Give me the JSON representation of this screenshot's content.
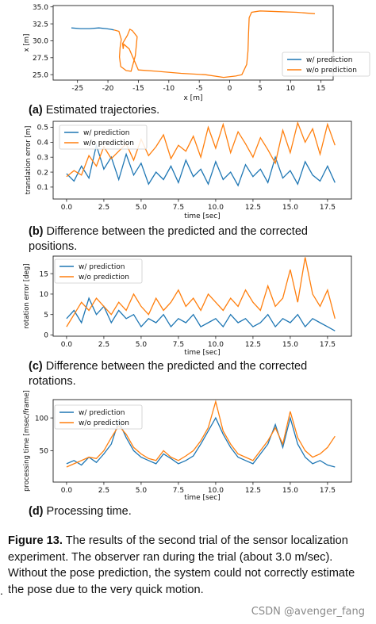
{
  "chart_data": [
    {
      "type": "line",
      "xlabel": "x [m]",
      "ylabel": "x [m]",
      "xlim": [
        -29,
        17
      ],
      "ylim": [
        24.2,
        35.2
      ],
      "xticks": [
        -25,
        -20,
        -15,
        -10,
        -5,
        0,
        5,
        10,
        15
      ],
      "yticks": [
        25.0,
        27.5,
        30.0,
        32.5,
        35.0
      ],
      "tick_labels_y": [
        "25.0",
        "27.5",
        "30.0",
        "32.5",
        "35.0"
      ],
      "legend": "lower-right",
      "series": [
        {
          "name": "w/ prediction",
          "color": "#1f77b4",
          "x": [
            -26,
            -24.5,
            -23,
            -21.5,
            -20.3,
            -19.6,
            -19.0
          ],
          "y": [
            31.9,
            31.8,
            31.8,
            31.9,
            31.8,
            31.7,
            31.6
          ]
        },
        {
          "name": "w/o prediction",
          "color": "#ff7f0e",
          "x": [
            -19.0,
            -18.2,
            -17.8,
            -18.0,
            -18.1,
            -17.9,
            -17.0,
            -16.2,
            -15.5,
            -15.2,
            -16.0,
            -16.4,
            -16.8,
            -17.6,
            -17.5,
            -17.4,
            -16.5,
            -15.0,
            -12.0,
            -8.0,
            -4.0,
            -1.0,
            1.0,
            2.0,
            2.8,
            3.0,
            3.1,
            3.2,
            3.6,
            5.0,
            8.0,
            11.0,
            14.0
          ],
          "y": [
            31.6,
            31.4,
            30.2,
            29.0,
            27.6,
            26.2,
            25.6,
            25.5,
            27.8,
            30.6,
            31.5,
            31.7,
            30.8,
            29.6,
            28.8,
            29.5,
            28.8,
            25.7,
            25.5,
            25.2,
            25.0,
            24.6,
            24.8,
            25.0,
            26.5,
            28.5,
            31.0,
            33.4,
            34.2,
            34.4,
            34.3,
            34.2,
            34.0
          ]
        }
      ]
    },
    {
      "type": "line",
      "xlabel": "time [sec]",
      "ylabel": "translation error [m]",
      "xlim": [
        -0.9,
        19.1
      ],
      "ylim": [
        0.02,
        0.54
      ],
      "xticks": [
        0.0,
        2.5,
        5.0,
        7.5,
        10.0,
        12.5,
        15.0,
        17.5
      ],
      "tick_labels_x": [
        "0.0",
        "2.5",
        "5.0",
        "7.5",
        "10.0",
        "12.5",
        "15.0",
        "17.5"
      ],
      "yticks": [
        0.1,
        0.2,
        0.3,
        0.4,
        0.5
      ],
      "tick_labels_y": [
        "0.1",
        "0.2",
        "0.3",
        "0.4",
        "0.5"
      ],
      "legend": "top-left",
      "series": [
        {
          "name": "w/ prediction",
          "color": "#1f77b4",
          "x": [
            0.0,
            0.5,
            1.0,
            1.5,
            2.0,
            2.5,
            3.0,
            3.5,
            4.0,
            4.5,
            5.0,
            5.5,
            6.0,
            6.5,
            7.0,
            7.5,
            8.0,
            8.5,
            9.0,
            9.5,
            10.0,
            10.5,
            11.0,
            11.5,
            12.0,
            12.5,
            13.0,
            13.5,
            14.0,
            14.5,
            15.0,
            15.5,
            16.0,
            16.5,
            17.0,
            17.5,
            18.0
          ],
          "y": [
            0.19,
            0.14,
            0.24,
            0.16,
            0.38,
            0.22,
            0.3,
            0.15,
            0.32,
            0.18,
            0.26,
            0.12,
            0.2,
            0.15,
            0.24,
            0.13,
            0.28,
            0.17,
            0.22,
            0.12,
            0.27,
            0.15,
            0.2,
            0.11,
            0.25,
            0.17,
            0.22,
            0.13,
            0.3,
            0.16,
            0.21,
            0.12,
            0.27,
            0.18,
            0.14,
            0.24,
            0.13
          ]
        },
        {
          "name": "w/o prediction",
          "color": "#ff7f0e",
          "x": [
            0.0,
            0.5,
            1.0,
            1.5,
            2.0,
            2.5,
            3.0,
            3.5,
            4.0,
            4.5,
            5.0,
            5.5,
            6.0,
            6.5,
            7.0,
            7.5,
            8.0,
            8.5,
            9.0,
            9.5,
            10.0,
            10.5,
            11.0,
            11.5,
            12.0,
            12.5,
            13.0,
            13.5,
            14.0,
            14.5,
            15.0,
            15.5,
            16.0,
            16.5,
            17.0,
            17.5,
            18.0
          ],
          "y": [
            0.17,
            0.21,
            0.18,
            0.31,
            0.24,
            0.37,
            0.29,
            0.34,
            0.39,
            0.28,
            0.42,
            0.31,
            0.37,
            0.45,
            0.29,
            0.38,
            0.34,
            0.44,
            0.3,
            0.5,
            0.36,
            0.52,
            0.33,
            0.47,
            0.39,
            0.3,
            0.43,
            0.35,
            0.26,
            0.48,
            0.33,
            0.53,
            0.4,
            0.49,
            0.32,
            0.52,
            0.38
          ]
        }
      ]
    },
    {
      "type": "line",
      "xlabel": "time [sec]",
      "ylabel": "rotation error [deg]",
      "xlim": [
        -0.9,
        19.1
      ],
      "ylim": [
        -0.3,
        19.3
      ],
      "xticks": [
        0.0,
        2.5,
        5.0,
        7.5,
        10.0,
        12.5,
        15.0,
        17.5
      ],
      "tick_labels_x": [
        "0.0",
        "2.5",
        "5.0",
        "7.5",
        "10.0",
        "12.5",
        "15.0",
        "17.5"
      ],
      "yticks": [
        0,
        5,
        10,
        15
      ],
      "tick_labels_y": [
        "0",
        "5",
        "10",
        "15"
      ],
      "legend": "top-left",
      "series": [
        {
          "name": "w/ prediction",
          "color": "#1f77b4",
          "x": [
            0.0,
            0.5,
            1.0,
            1.5,
            2.0,
            2.5,
            3.0,
            3.5,
            4.0,
            4.5,
            5.0,
            5.5,
            6.0,
            6.5,
            7.0,
            7.5,
            8.0,
            8.5,
            9.0,
            9.5,
            10.0,
            10.5,
            11.0,
            11.5,
            12.0,
            12.5,
            13.0,
            13.5,
            14.0,
            14.5,
            15.0,
            15.5,
            16.0,
            16.5,
            17.0,
            17.5,
            18.0
          ],
          "y": [
            4,
            6,
            3,
            9,
            5,
            7,
            3,
            6,
            4,
            5,
            2,
            4,
            3,
            5,
            2,
            4,
            3,
            5,
            2,
            3,
            4,
            2,
            5,
            3,
            4,
            2,
            3,
            5,
            2,
            4,
            3,
            5,
            2,
            4,
            3,
            2,
            1
          ]
        },
        {
          "name": "w/o prediction",
          "color": "#ff7f0e",
          "x": [
            0.0,
            0.5,
            1.0,
            1.5,
            2.0,
            2.5,
            3.0,
            3.5,
            4.0,
            4.5,
            5.0,
            5.5,
            6.0,
            6.5,
            7.0,
            7.5,
            8.0,
            8.5,
            9.0,
            9.5,
            10.0,
            10.5,
            11.0,
            11.5,
            12.0,
            12.5,
            13.0,
            13.5,
            14.0,
            14.5,
            15.0,
            15.5,
            16.0,
            16.5,
            17.0,
            17.5,
            18.0
          ],
          "y": [
            2,
            5,
            8,
            6,
            9,
            7,
            5,
            8,
            6,
            10,
            7,
            5,
            9,
            6,
            8,
            11,
            7,
            9,
            6,
            10,
            8,
            6,
            9,
            7,
            11,
            8,
            6,
            12,
            7,
            9,
            16,
            8,
            19,
            10,
            7,
            11,
            4
          ]
        }
      ]
    },
    {
      "type": "line",
      "xlabel": "time [sec]",
      "ylabel": "processing time [msec/frame]",
      "xlim": [
        -0.9,
        19.1
      ],
      "ylim": [
        2,
        128
      ],
      "xticks": [
        0.0,
        2.5,
        5.0,
        7.5,
        10.0,
        12.5,
        15.0,
        17.5
      ],
      "tick_labels_x": [
        "0.0",
        "2.5",
        "5.0",
        "7.5",
        "10.0",
        "12.5",
        "15.0",
        "17.5"
      ],
      "yticks": [
        50,
        100
      ],
      "tick_labels_y": [
        "50",
        "100"
      ],
      "legend": "top-left",
      "series": [
        {
          "name": "w/ prediction",
          "color": "#1f77b4",
          "x": [
            0.0,
            0.5,
            1.0,
            1.5,
            2.0,
            2.5,
            3.0,
            3.5,
            4.0,
            4.5,
            5.0,
            5.5,
            6.0,
            6.5,
            7.0,
            7.5,
            8.0,
            8.5,
            9.0,
            9.5,
            10.0,
            10.5,
            11.0,
            11.5,
            12.0,
            12.5,
            13.0,
            13.5,
            14.0,
            14.5,
            15.0,
            15.5,
            16.0,
            16.5,
            17.0,
            17.5,
            18.0
          ],
          "y": [
            30,
            35,
            28,
            40,
            32,
            45,
            60,
            95,
            70,
            50,
            40,
            35,
            30,
            45,
            38,
            30,
            35,
            42,
            60,
            80,
            100,
            75,
            55,
            40,
            35,
            30,
            45,
            60,
            90,
            55,
            100,
            60,
            40,
            30,
            35,
            28,
            25
          ]
        },
        {
          "name": "w/o prediction",
          "color": "#ff7f0e",
          "x": [
            0.0,
            0.5,
            1.0,
            1.5,
            2.0,
            2.5,
            3.0,
            3.5,
            4.0,
            4.5,
            5.0,
            5.5,
            6.0,
            6.5,
            7.0,
            7.5,
            8.0,
            8.5,
            9.0,
            9.5,
            10.0,
            10.5,
            11.0,
            11.5,
            12.0,
            12.5,
            13.0,
            13.5,
            14.0,
            14.5,
            15.0,
            15.5,
            16.0,
            16.5,
            17.0,
            17.5,
            18.0
          ],
          "y": [
            25,
            30,
            35,
            40,
            38,
            50,
            70,
            88,
            75,
            55,
            45,
            38,
            35,
            50,
            40,
            35,
            42,
            50,
            65,
            85,
            125,
            80,
            60,
            45,
            40,
            35,
            50,
            65,
            85,
            60,
            110,
            70,
            50,
            40,
            45,
            55,
            72
          ]
        }
      ]
    }
  ],
  "captions": [
    {
      "tag": "(a)",
      "text": " Estimated trajectories."
    },
    {
      "tag": "(b)",
      "text": " Difference between the predicted and the corrected positions."
    },
    {
      "tag": "(c)",
      "text": " Difference between the predicted and the corrected rotations."
    },
    {
      "tag": "(d)",
      "text": " Processing time."
    }
  ],
  "figure": {
    "tag": "Figure 13.",
    "text": " The results of the second trial of the sensor localization experiment. The observer ran during the trial (about 3.0 m/sec). Without the pose prediction, the system could not correctly estimate the pose due to the very quick motion."
  },
  "watermark": "CSDN @avenger_fang",
  "margin_mark": "."
}
